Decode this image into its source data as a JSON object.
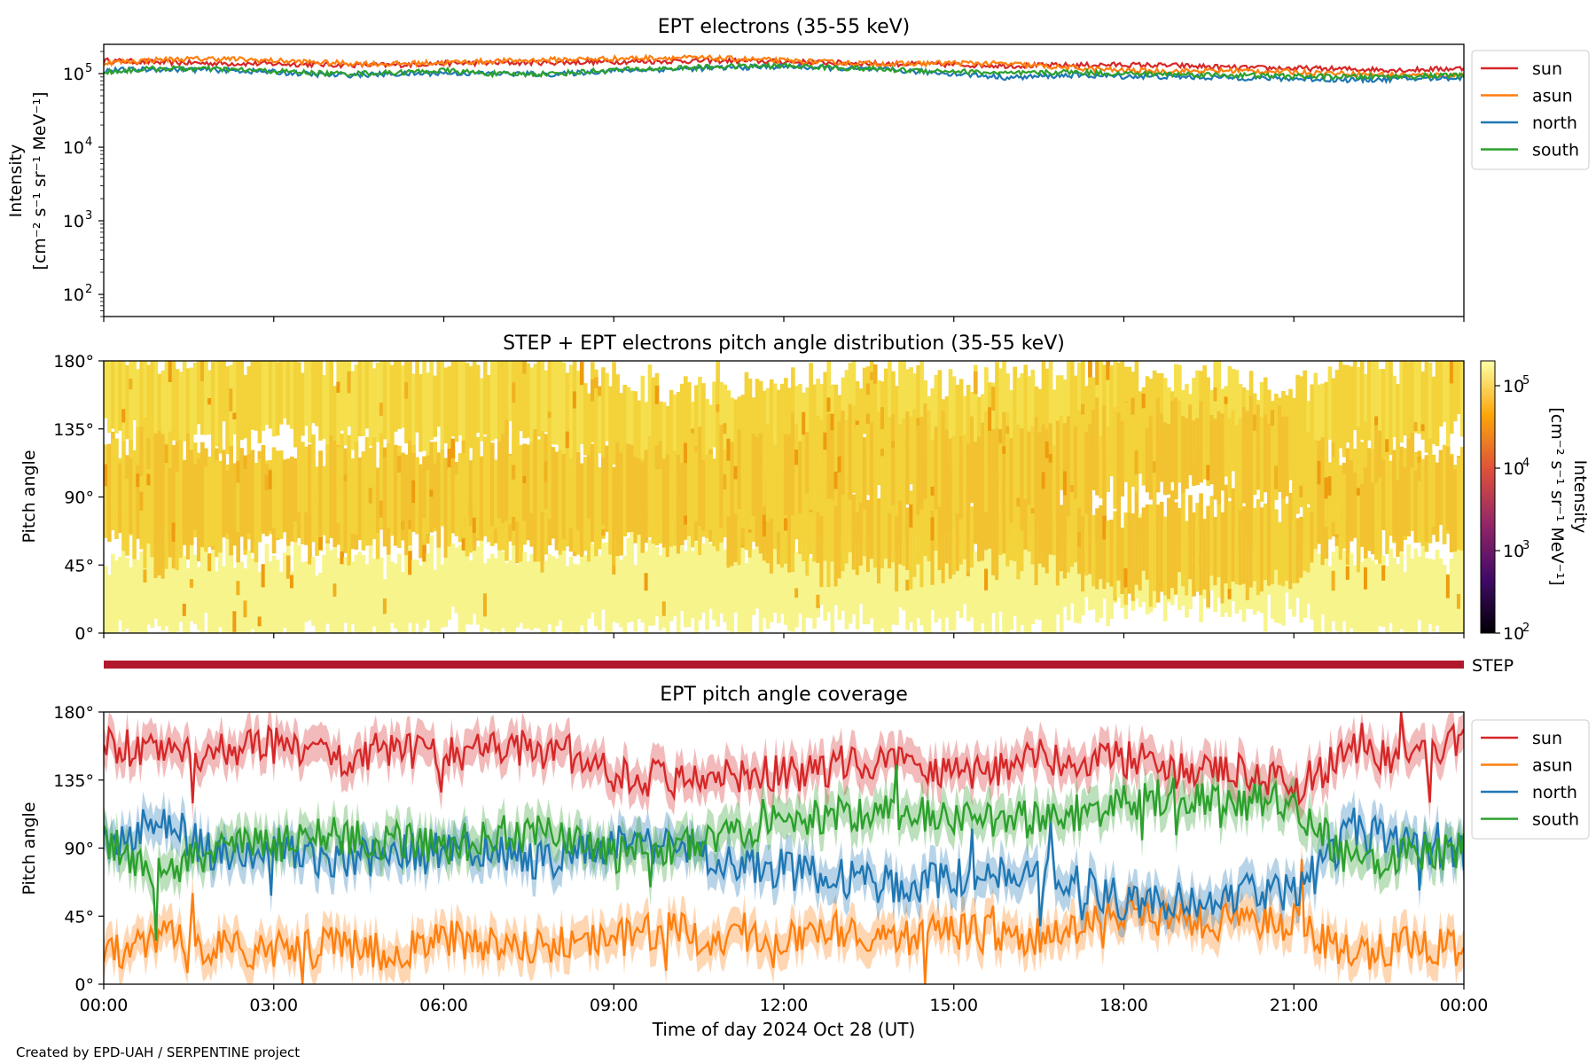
{
  "chart_data": [
    {
      "type": "line",
      "title": "EPT electrons (35-55 keV)",
      "ylabel_line1": "Intensity",
      "ylabel_line2": "[cm⁻² s⁻¹ sr⁻¹ MeV⁻¹]",
      "yscale": "log",
      "ylim": [
        50,
        250000
      ],
      "yticks": [
        {
          "value": 100,
          "base": "10",
          "exp": "2"
        },
        {
          "value": 1000,
          "base": "10",
          "exp": "3"
        },
        {
          "value": 10000,
          "base": "10",
          "exp": "4"
        },
        {
          "value": 100000,
          "base": "10",
          "exp": "5"
        }
      ],
      "xlim": [
        0,
        24
      ],
      "x": [
        0,
        1,
        2,
        3,
        4,
        5,
        6,
        7,
        8,
        9,
        10,
        11,
        12,
        13,
        14,
        15,
        16,
        17,
        18,
        19,
        20,
        21,
        22,
        23,
        24
      ],
      "series": [
        {
          "name": "sun",
          "color": "#d62728",
          "values": [
            150000,
            142000,
            138000,
            136000,
            132000,
            130000,
            138000,
            140000,
            142000,
            145000,
            148000,
            150000,
            145000,
            140000,
            135000,
            132000,
            128000,
            130000,
            132000,
            128000,
            120000,
            118000,
            115000,
            112000,
            118000
          ]
        },
        {
          "name": "asun",
          "color": "#ff7f0e",
          "values": [
            140000,
            155000,
            160000,
            150000,
            140000,
            135000,
            142000,
            148000,
            155000,
            160000,
            165000,
            160000,
            150000,
            140000,
            135000,
            140000,
            135000,
            120000,
            110000,
            108000,
            110000,
            105000,
            100000,
            95000,
            95000
          ]
        },
        {
          "name": "north",
          "color": "#1f77b4",
          "values": [
            110000,
            115000,
            112000,
            105000,
            95000,
            98000,
            102000,
            100000,
            98000,
            110000,
            115000,
            120000,
            125000,
            118000,
            110000,
            100000,
            88000,
            95000,
            92000,
            90000,
            88000,
            85000,
            82000,
            85000,
            88000
          ]
        },
        {
          "name": "south",
          "color": "#2ca02c",
          "values": [
            105000,
            118000,
            115000,
            108000,
            100000,
            102000,
            110000,
            98000,
            100000,
            112000,
            118000,
            125000,
            128000,
            120000,
            112000,
            108000,
            100000,
            105000,
            100000,
            98000,
            95000,
            92000,
            90000,
            92000,
            95000
          ]
        }
      ],
      "legend_position": "outside-right"
    },
    {
      "type": "heatmap",
      "title": "STEP + EPT electrons pitch angle distribution (35-55 keV)",
      "ylabel": "Pitch angle",
      "ylim": [
        0,
        180
      ],
      "yticks": [
        "0°",
        "45°",
        "90°",
        "135°",
        "180°"
      ],
      "xlim": [
        0,
        24
      ],
      "colorbar": {
        "label": "Intensity [cm⁻² s⁻¹ sr⁻¹ MeV⁻¹]",
        "label_line1": "Intensity",
        "label_line2": "[cm⁻² s⁻¹ sr⁻¹ MeV⁻¹]",
        "scale": "log",
        "range": [
          100,
          200000
        ],
        "ticks": [
          {
            "value": 100,
            "base": "10",
            "exp": "2"
          },
          {
            "value": 1000,
            "base": "10",
            "exp": "3"
          },
          {
            "value": 10000,
            "base": "10",
            "exp": "4"
          },
          {
            "value": 100000,
            "base": "10",
            "exp": "5"
          }
        ],
        "colormap": "inferno",
        "colormap_stops": [
          "#000004",
          "#420a68",
          "#932667",
          "#dd513a",
          "#fca50a",
          "#fcffa4"
        ]
      }
    },
    {
      "type": "bar",
      "label": "STEP",
      "color": "#b2182b",
      "xlim": [
        0,
        24
      ]
    },
    {
      "type": "line",
      "title": "EPT pitch angle coverage",
      "ylabel": "Pitch angle",
      "xlabel": "Time of day 2024 Oct 28 (UT)",
      "ylim": [
        0,
        180
      ],
      "yticks": [
        "0°",
        "45°",
        "90°",
        "135°",
        "180°"
      ],
      "xlim": [
        0,
        24
      ],
      "xticks": [
        "00:00",
        "03:00",
        "06:00",
        "09:00",
        "12:00",
        "15:00",
        "18:00",
        "21:00",
        "00:00"
      ],
      "x": [
        0,
        1,
        2,
        3,
        4,
        5,
        6,
        7,
        8,
        9,
        10,
        11,
        12,
        13,
        14,
        15,
        16,
        17,
        18,
        19,
        20,
        21,
        22,
        23,
        24
      ],
      "series": [
        {
          "name": "sun",
          "color": "#d62728",
          "values": [
            160,
            150,
            155,
            158,
            150,
            155,
            150,
            158,
            152,
            140,
            135,
            140,
            138,
            145,
            150,
            140,
            145,
            150,
            150,
            140,
            140,
            130,
            155,
            150,
            160
          ]
        },
        {
          "name": "asun",
          "color": "#ff7f0e",
          "values": [
            20,
            30,
            25,
            22,
            25,
            20,
            30,
            28,
            25,
            30,
            35,
            30,
            32,
            35,
            30,
            35,
            30,
            35,
            45,
            45,
            40,
            40,
            20,
            25,
            25
          ]
        },
        {
          "name": "north",
          "color": "#1f77b4",
          "values": [
            90,
            110,
            85,
            88,
            82,
            85,
            90,
            85,
            80,
            95,
            90,
            80,
            75,
            70,
            65,
            70,
            75,
            70,
            55,
            55,
            60,
            60,
            100,
            95,
            85
          ]
        },
        {
          "name": "south",
          "color": "#2ca02c",
          "values": [
            95,
            70,
            90,
            92,
            98,
            95,
            90,
            100,
            100,
            85,
            90,
            100,
            110,
            112,
            115,
            110,
            108,
            112,
            120,
            125,
            120,
            120,
            80,
            85,
            90
          ]
        }
      ],
      "band_halfwidth": 12,
      "legend_position": "outside-right"
    }
  ],
  "footer": "Created by EPD-UAH / SERPENTINE project"
}
